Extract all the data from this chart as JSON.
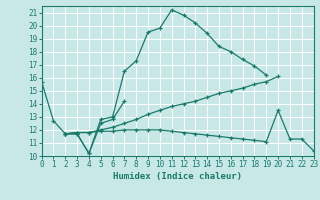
{
  "bg_color": "#c8e8e8",
  "grid_color": "#ffffff",
  "line_color": "#1a7a6a",
  "xlabel": "Humidex (Indice chaleur)",
  "xlim": [
    0,
    23
  ],
  "ylim": [
    10,
    21.5
  ],
  "xticks": [
    0,
    1,
    2,
    3,
    4,
    5,
    6,
    7,
    8,
    9,
    10,
    11,
    12,
    13,
    14,
    15,
    16,
    17,
    18,
    19,
    20,
    21,
    22,
    23
  ],
  "yticks": [
    10,
    11,
    12,
    13,
    14,
    15,
    16,
    17,
    18,
    19,
    20,
    21
  ],
  "lines": [
    {
      "x": [
        0,
        1,
        2,
        3,
        4,
        5,
        6,
        7,
        8,
        9,
        10,
        11,
        12,
        13,
        14,
        15,
        16,
        17,
        18,
        19
      ],
      "y": [
        15.7,
        12.7,
        11.7,
        11.7,
        10.2,
        12.8,
        13.0,
        16.5,
        17.3,
        19.5,
        19.8,
        21.2,
        20.8,
        20.2,
        19.4,
        18.4,
        18.0,
        17.4,
        16.9,
        16.2
      ]
    },
    {
      "x": [
        2,
        3,
        4,
        5,
        6,
        7
      ],
      "y": [
        11.7,
        11.7,
        10.2,
        12.5,
        12.8,
        14.2
      ]
    },
    {
      "x": [
        2,
        3,
        4,
        5,
        6,
        7,
        8,
        9,
        10,
        11,
        12,
        13,
        14,
        15,
        16,
        17,
        18,
        19,
        20
      ],
      "y": [
        11.7,
        11.8,
        11.8,
        12.0,
        12.2,
        12.5,
        12.8,
        13.2,
        13.5,
        13.8,
        14.0,
        14.2,
        14.5,
        14.8,
        15.0,
        15.2,
        15.5,
        15.7,
        16.1
      ]
    },
    {
      "x": [
        2,
        3,
        4,
        5,
        6,
        7,
        8,
        9,
        10,
        11,
        12,
        13,
        14,
        15,
        16,
        17,
        18,
        19,
        20,
        21,
        22,
        23
      ],
      "y": [
        11.7,
        11.8,
        11.8,
        11.9,
        11.9,
        12.0,
        12.0,
        12.0,
        12.0,
        11.9,
        11.8,
        11.7,
        11.6,
        11.5,
        11.4,
        11.3,
        11.2,
        11.1,
        13.5,
        11.3,
        11.3,
        10.4
      ]
    }
  ]
}
